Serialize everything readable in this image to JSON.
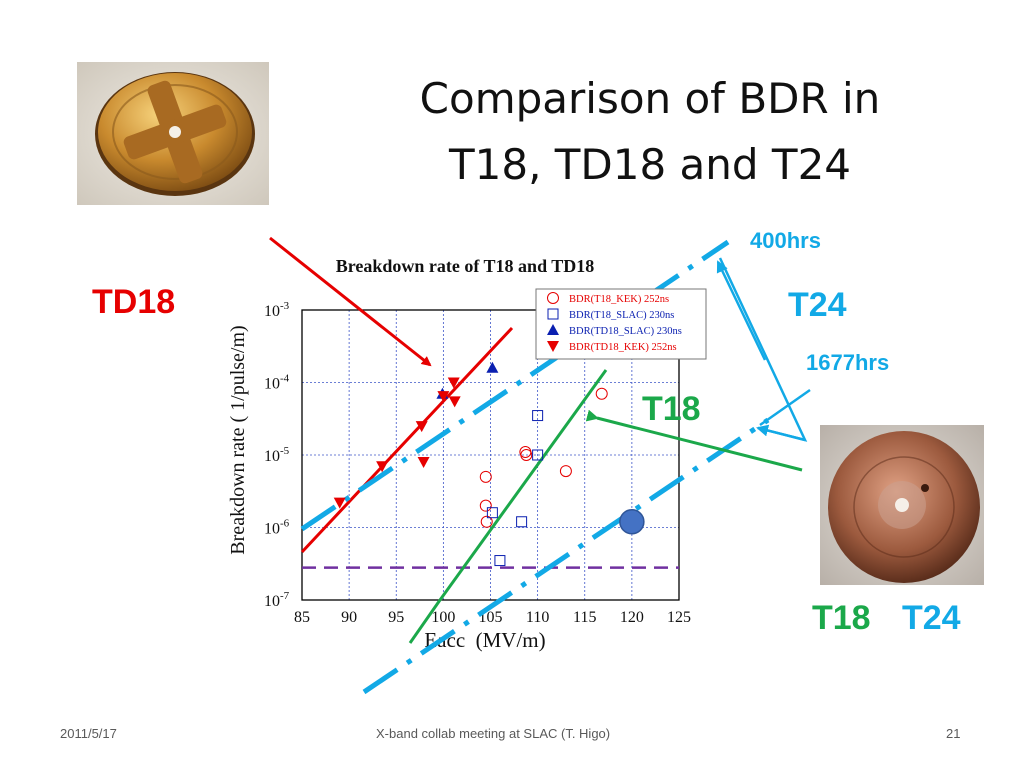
{
  "slide": {
    "title_line1": "Comparison of BDR in",
    "title_line2": "T18, TD18 and T24",
    "labels": {
      "td18": "TD18",
      "t24_top": "T24",
      "hrs400": "400hrs",
      "hrs1677": "1677hrs",
      "t18_mid": "T18",
      "bottom_t18": "T18",
      "bottom_t24": "T24"
    },
    "footer": {
      "date": "2011/5/17",
      "center": "X-band collab meeting at SLAC (T. Higo)",
      "page": "21"
    },
    "colors": {
      "red": "#e60000",
      "green": "#1ba84a",
      "cyan": "#12a9e6",
      "blue": "#0a1fb0",
      "purple": "#7030a0",
      "marker_fill": "#4472c4"
    }
  },
  "chart_data": {
    "type": "scatter",
    "title": "Breakdown rate of T18 and TD18",
    "xlabel": "Eacc  (MV/m)",
    "ylabel": "Breakdown rate ( 1/pulse/m)",
    "xlim": [
      85,
      125
    ],
    "ylim_log10": [
      -7,
      -3
    ],
    "log_y": true,
    "grid": true,
    "legend_position": "top-right",
    "x_ticks": [
      "85",
      "90",
      "95",
      "100",
      "105",
      "110",
      "115",
      "120",
      "125"
    ],
    "y_ticks": [
      {
        "base": "10",
        "exp": "-3"
      },
      {
        "base": "10",
        "exp": "-4"
      },
      {
        "base": "10",
        "exp": "-5"
      },
      {
        "base": "10",
        "exp": "-6"
      },
      {
        "base": "10",
        "exp": "-7"
      }
    ],
    "series": [
      {
        "name": "BDR(T18_KEK) 252ns",
        "marker": "circle-open",
        "color": "#e60000",
        "points": [
          [
            104.5,
            5e-06
          ],
          [
            104.5,
            2e-06
          ],
          [
            104.6,
            1.2e-06
          ],
          [
            108.7,
            1.1e-05
          ],
          [
            108.8,
            1e-05
          ],
          [
            113,
            6e-06
          ],
          [
            116.8,
            7e-05
          ]
        ]
      },
      {
        "name": "BDR(T18_SLAC) 230ns",
        "marker": "square-open",
        "color": "#0a1fb0",
        "points": [
          [
            105.2,
            1.6e-06
          ],
          [
            106,
            3.5e-07
          ],
          [
            108.3,
            1.2e-06
          ],
          [
            110,
            3.5e-05
          ],
          [
            110,
            1e-05
          ]
        ]
      },
      {
        "name": "BDR(TD18_SLAC) 230ns",
        "marker": "triangle-up",
        "color": "#0a1fb0",
        "points": [
          [
            99.9,
            7e-05
          ],
          [
            105.2,
            0.00016
          ]
        ]
      },
      {
        "name": "BDR(TD18_KEK) 252ns",
        "marker": "triangle-down",
        "color": "#e60000",
        "points": [
          [
            89,
            2.2e-06
          ],
          [
            93.5,
            7e-06
          ],
          [
            97.7,
            2.5e-05
          ],
          [
            97.9,
            8e-06
          ],
          [
            100,
            6.5e-05
          ],
          [
            101.1,
            0.0001
          ],
          [
            101.2,
            5.5e-05
          ]
        ]
      }
    ],
    "highlight_point": [
      120,
      1.2e-06
    ],
    "reference_level": 2.8e-07
  }
}
